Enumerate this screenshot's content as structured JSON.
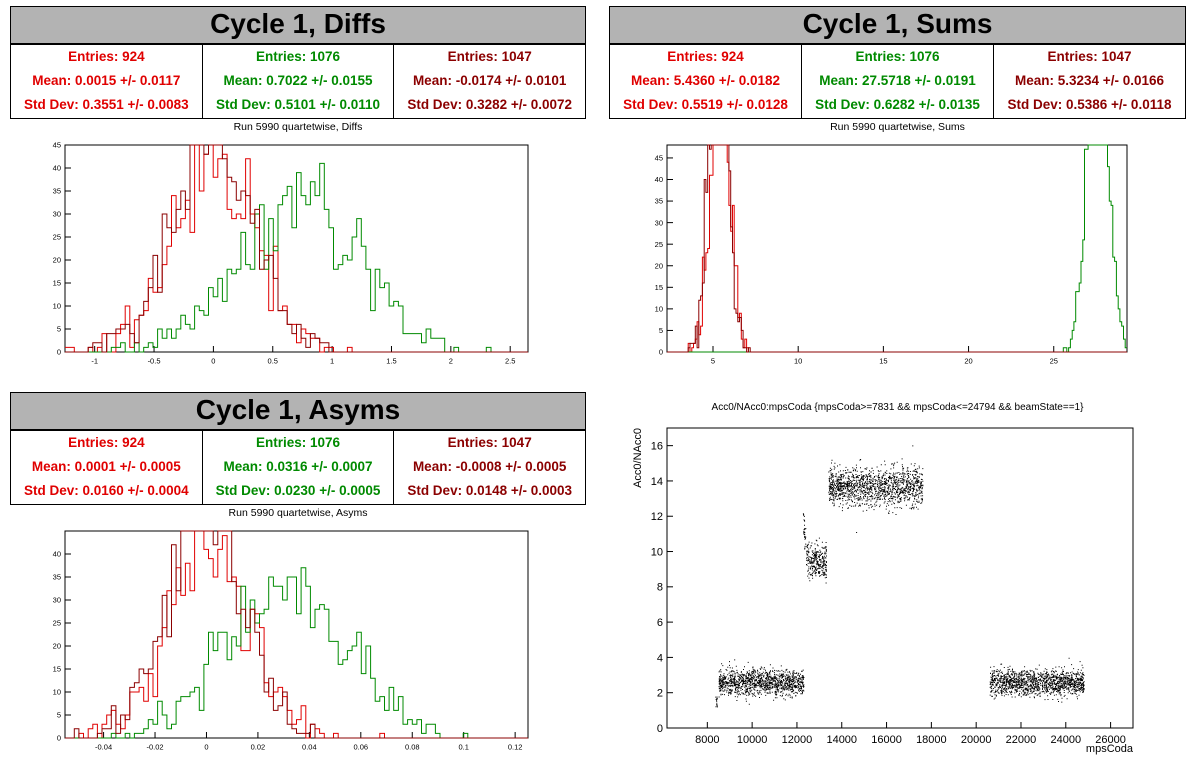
{
  "colors": {
    "red": "#e00000",
    "green": "#008a00",
    "darkred": "#8b0000"
  },
  "panels": [
    {
      "title": "Cycle 1, Diffs",
      "subtitle": "Run 5990 quartetwise, Diffs",
      "stats": [
        {
          "entries": "Entries: 924",
          "mean": "Mean: 0.0015 +/- 0.0117",
          "std": "Std Dev: 0.3551 +/- 0.0083"
        },
        {
          "entries": "Entries: 1076",
          "mean": "Mean: 0.7022 +/- 0.0155",
          "std": "Std Dev: 0.5101 +/- 0.0110"
        },
        {
          "entries": "Entries: 1047",
          "mean": "Mean: -0.0174 +/- 0.0101",
          "std": "Std Dev: 0.3282 +/- 0.0072"
        }
      ]
    },
    {
      "title": "Cycle 1, Sums",
      "subtitle": "Run 5990 quartetwise, Sums",
      "stats": [
        {
          "entries": "Entries: 924",
          "mean": "Mean: 5.4360 +/- 0.0182",
          "std": "Std Dev: 0.5519 +/- 0.0128"
        },
        {
          "entries": "Entries: 1076",
          "mean": "Mean: 27.5718 +/- 0.0191",
          "std": "Std Dev: 0.6282 +/- 0.0135"
        },
        {
          "entries": "Entries: 1047",
          "mean": "Mean: 5.3234 +/- 0.0166",
          "std": "Std Dev: 0.5386 +/- 0.0118"
        }
      ]
    },
    {
      "title": "Cycle 1, Asyms",
      "subtitle": "Run 5990 quartetwise, Asyms",
      "stats": [
        {
          "entries": "Entries: 924",
          "mean": "Mean: 0.0001 +/- 0.0005",
          "std": "Std Dev: 0.0160 +/- 0.0004"
        },
        {
          "entries": "Entries: 1076",
          "mean": "Mean: 0.0316 +/- 0.0007",
          "std": "Std Dev: 0.0230 +/- 0.0005"
        },
        {
          "entries": "Entries: 1047",
          "mean": "Mean: -0.0008 +/- 0.0005",
          "std": "Std Dev: 0.0148 +/- 0.0003"
        }
      ]
    }
  ],
  "scatter_title": "Acc0/NAcc0:mpsCoda {mpsCoda>=7831 && mpsCoda<=24794 && beamState==1}",
  "chart_data": [
    {
      "type": "histogram",
      "title": "Run 5990 quartetwise, Diffs",
      "xlim": [
        -1.25,
        2.65
      ],
      "ylim": [
        0,
        45
      ],
      "xticks": [
        -1,
        -0.5,
        0,
        0.5,
        1,
        1.5,
        2,
        2.5
      ],
      "yticks": [
        0,
        5,
        10,
        15,
        20,
        25,
        30,
        35,
        40,
        45
      ],
      "series": [
        {
          "mean": 0.0015,
          "std": 0.3551,
          "entries": 924,
          "color": "#e00000"
        },
        {
          "mean": 0.7022,
          "std": 0.5101,
          "entries": 1076,
          "color": "#008a00"
        },
        {
          "mean": -0.0174,
          "std": 0.3282,
          "entries": 1047,
          "color": "#8b0000"
        }
      ]
    },
    {
      "type": "histogram",
      "title": "Run 5990 quartetwise, Sums",
      "xlim": [
        2.3,
        29.3
      ],
      "ylim": [
        0,
        48
      ],
      "xticks": [
        5,
        10,
        15,
        20,
        25
      ],
      "yticks": [
        0,
        5,
        10,
        15,
        20,
        25,
        30,
        35,
        40,
        45
      ],
      "series": [
        {
          "mean": 5.436,
          "std": 0.5519,
          "entries": 924,
          "color": "#e00000"
        },
        {
          "mean": 27.5718,
          "std": 0.6282,
          "entries": 1076,
          "color": "#008a00"
        },
        {
          "mean": 5.3234,
          "std": 0.5386,
          "entries": 1047,
          "color": "#8b0000"
        }
      ]
    },
    {
      "type": "histogram",
      "title": "Run 5990 quartetwise, Asyms",
      "xlim": [
        -0.055,
        0.125
      ],
      "ylim": [
        0,
        45
      ],
      "xticks": [
        -0.04,
        -0.02,
        0,
        0.02,
        0.04,
        0.06,
        0.08,
        0.1,
        0.12
      ],
      "yticks": [
        0,
        5,
        10,
        15,
        20,
        25,
        30,
        35,
        40
      ],
      "series": [
        {
          "mean": 0.0001,
          "std": 0.016,
          "entries": 924,
          "color": "#e00000"
        },
        {
          "mean": 0.0316,
          "std": 0.023,
          "entries": 1076,
          "color": "#008a00"
        },
        {
          "mean": -0.0008,
          "std": 0.0148,
          "entries": 1047,
          "color": "#8b0000"
        }
      ]
    },
    {
      "type": "scatter",
      "title": "Acc0/NAcc0:mpsCoda {mpsCoda>=7831 && mpsCoda<=24794 && beamState==1}",
      "xlabel": "mpsCoda",
      "ylabel": "Acc0/NAcc0",
      "xlim": [
        6200,
        27000
      ],
      "ylim": [
        0,
        17
      ],
      "xticks": [
        8000,
        10000,
        12000,
        14000,
        16000,
        18000,
        20000,
        22000,
        24000,
        26000
      ],
      "yticks": [
        0,
        2,
        4,
        6,
        8,
        10,
        12,
        14,
        16
      ],
      "clusters": [
        {
          "x": [
            8500,
            12300
          ],
          "y_center": 2.6,
          "y_spread": 0.4
        },
        {
          "x": [
            12400,
            13300
          ],
          "y_center": 9.5,
          "y_spread": 0.5
        },
        {
          "x": [
            13400,
            17600
          ],
          "y_center": 13.7,
          "y_spread": 0.6
        },
        {
          "x": [
            20600,
            24800
          ],
          "y_center": 2.6,
          "y_spread": 0.4
        }
      ]
    }
  ]
}
